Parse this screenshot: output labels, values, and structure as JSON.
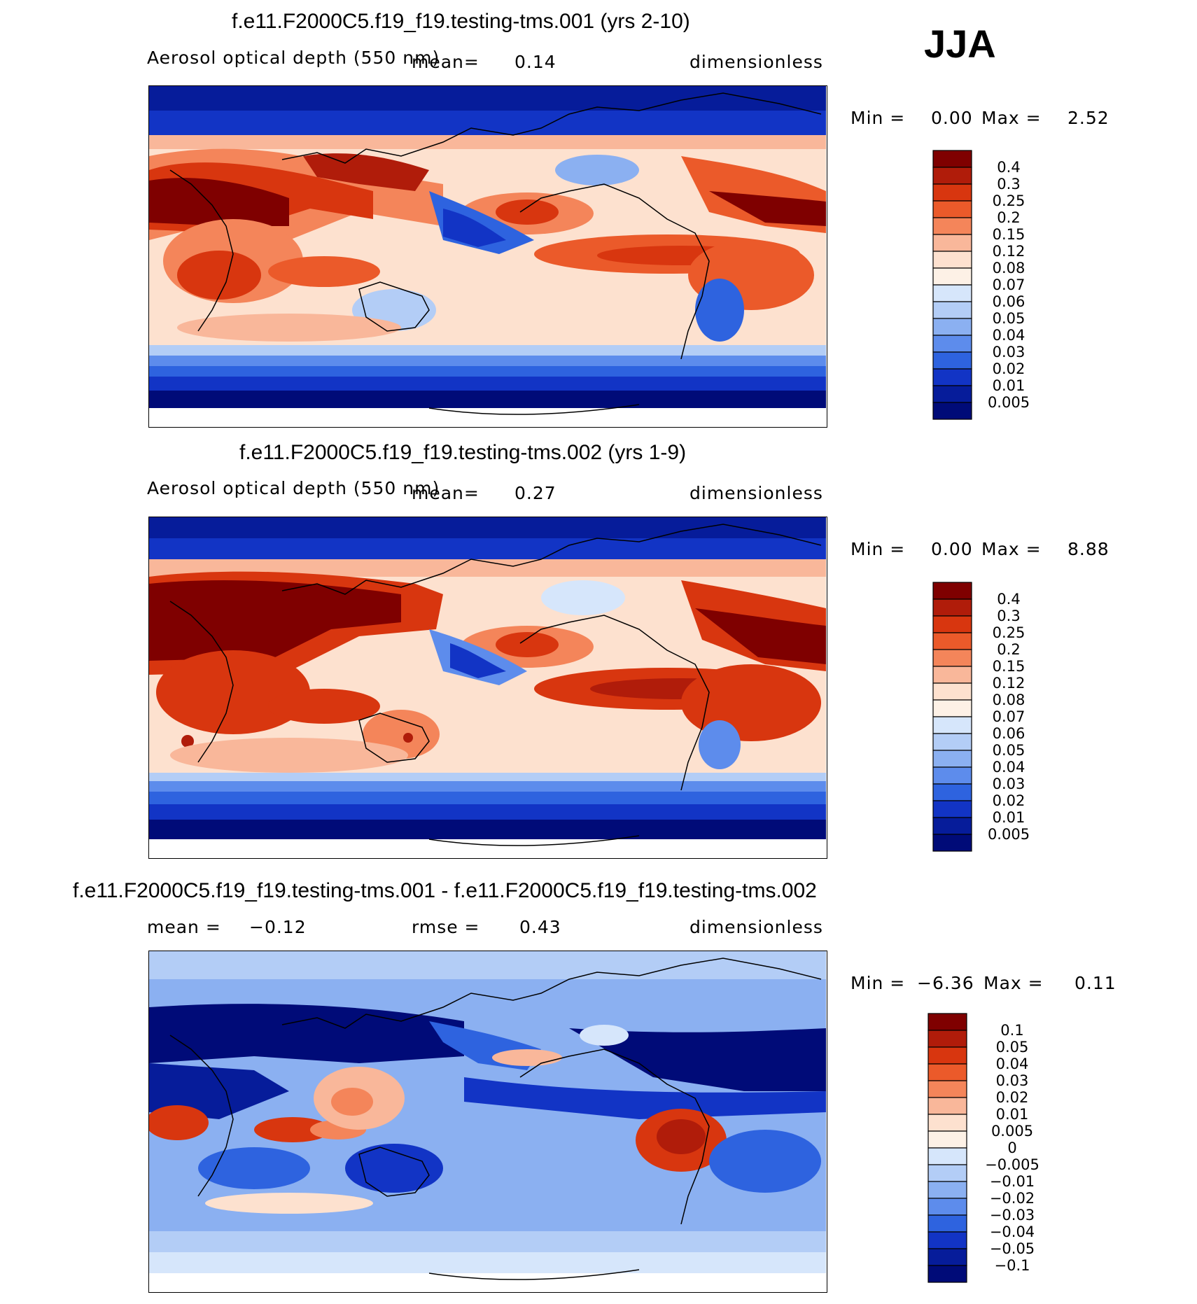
{
  "season": "JJA",
  "panels": [
    {
      "title": "f.e11.F2000C5.f19_f19.testing-tms.001 (yrs 2-10)",
      "variable": "Aerosol optical depth (550 nm)",
      "stat_label": "mean=",
      "stat_value": "0.14",
      "units": "dimensionless",
      "min_label": "Min =",
      "min_value": "0.00",
      "max_label": "Max =",
      "max_value": "2.52",
      "colorbar_levels": [
        "0.4",
        "0.3",
        "0.25",
        "0.2",
        "0.15",
        "0.12",
        "0.08",
        "0.07",
        "0.06",
        "0.05",
        "0.04",
        "0.03",
        "0.02",
        "0.01",
        "0.005"
      ]
    },
    {
      "title": "f.e11.F2000C5.f19_f19.testing-tms.002 (yrs 1-9)",
      "variable": "Aerosol optical depth (550 nm)",
      "stat_label": "mean=",
      "stat_value": "0.27",
      "units": "dimensionless",
      "min_label": "Min =",
      "min_value": "0.00",
      "max_label": "Max =",
      "max_value": "8.88",
      "colorbar_levels": [
        "0.4",
        "0.3",
        "0.25",
        "0.2",
        "0.15",
        "0.12",
        "0.08",
        "0.07",
        "0.06",
        "0.05",
        "0.04",
        "0.03",
        "0.02",
        "0.01",
        "0.005"
      ]
    },
    {
      "title": "f.e11.F2000C5.f19_f19.testing-tms.001 - f.e11.F2000C5.f19_f19.testing-tms.002",
      "mean_label": "mean =",
      "mean_value": "−0.12",
      "rmse_label": "rmse =",
      "rmse_value": "0.43",
      "units": "dimensionless",
      "min_label": "Min =",
      "min_value": "−6.36",
      "max_label": "Max =",
      "max_value": "0.11",
      "colorbar_levels": [
        "0.1",
        "0.05",
        "0.04",
        "0.03",
        "0.02",
        "0.01",
        "0.005",
        "0",
        "−0.005",
        "−0.01",
        "−0.02",
        "−0.03",
        "−0.04",
        "−0.05",
        "−0.1"
      ]
    }
  ],
  "colors": {
    "abs_scale": [
      "#7f0000",
      "#b01c0a",
      "#d8360f",
      "#eb5a2a",
      "#f4855a",
      "#f9b79a",
      "#fde1cf",
      "#fdf1e6",
      "#d6e6fb",
      "#b3cdf6",
      "#8bb0f1",
      "#5d8cec",
      "#2e63df",
      "#1234c5",
      "#061c9a",
      "#000b78"
    ],
    "diff_scale": [
      "#7f0000",
      "#b01c0a",
      "#d8360f",
      "#eb5a2a",
      "#f4855a",
      "#f9b79a",
      "#fde1cf",
      "#fdf1e6",
      "#d6e6fb",
      "#b3cdf6",
      "#8bb0f1",
      "#5d8cec",
      "#2e63df",
      "#1234c5",
      "#061c9a",
      "#000b78"
    ]
  }
}
